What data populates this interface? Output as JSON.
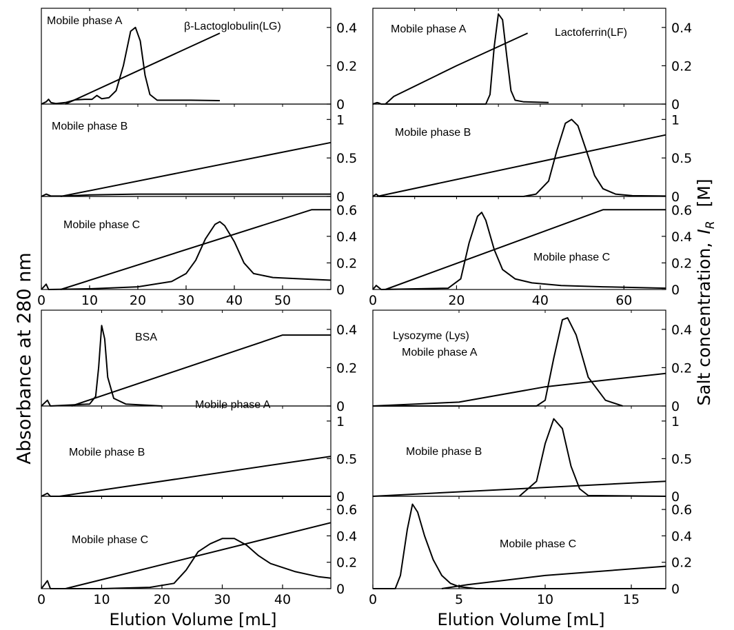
{
  "figure": {
    "ylabel_left": "Absorbance at 280 nm",
    "ylabel_right_main": "Salt concentration,",
    "ylabel_right_var": "I",
    "ylabel_right_sub": "R",
    "ylabel_right_unit": "[M]",
    "xlabel_left": "Elution Volume [mL]",
    "xlabel_right": "Elution Volume [mL]"
  },
  "chart_data": [
    {
      "type": "line",
      "panel": "top-left",
      "phase": "Mobile phase A",
      "annotations": [
        "Mobile phase A",
        "β-Lactoglobulin(LG)"
      ],
      "xlim": [
        0,
        60
      ],
      "ylim_right": [
        0,
        0.5
      ],
      "yticks_right": [
        "0",
        "0.2",
        "0.4"
      ],
      "series": [
        {
          "role": "salt",
          "points": [
            [
              5,
              0
            ],
            [
              37,
              0.37
            ]
          ]
        },
        {
          "role": "absorbance",
          "points": [
            [
              0,
              0
            ],
            [
              1,
              0.012
            ],
            [
              1.5,
              0.025
            ],
            [
              2,
              0.008
            ],
            [
              3,
              0.003
            ],
            [
              5,
              0.008
            ],
            [
              7,
              0.022
            ],
            [
              9,
              0.025
            ],
            [
              10.5,
              0.025
            ],
            [
              11.5,
              0.045
            ],
            [
              12.5,
              0.028
            ],
            [
              14,
              0.033
            ],
            [
              15.5,
              0.07
            ],
            [
              17,
              0.2
            ],
            [
              18.5,
              0.38
            ],
            [
              19.5,
              0.4
            ],
            [
              20.5,
              0.33
            ],
            [
              21.5,
              0.15
            ],
            [
              22.5,
              0.05
            ],
            [
              24,
              0.02
            ],
            [
              27,
              0.02
            ],
            [
              31,
              0.02
            ],
            [
              37,
              0.018
            ]
          ]
        }
      ]
    },
    {
      "type": "line",
      "panel": "top-right",
      "phase": "Mobile phase A",
      "annotations": [
        "Mobile phase A",
        "Lactoferrin(LF)"
      ],
      "xlim": [
        0,
        70
      ],
      "ylim_right": [
        0,
        0.5
      ],
      "yticks_right": [
        "0",
        "0.2",
        "0.4"
      ],
      "series": [
        {
          "role": "salt",
          "points": [
            [
              3,
              0
            ],
            [
              5,
              0.04
            ],
            [
              20,
              0.2
            ],
            [
              30,
              0.3
            ],
            [
              37,
              0.37
            ]
          ]
        },
        {
          "role": "absorbance",
          "points": [
            [
              0,
              0
            ],
            [
              1,
              0.008
            ],
            [
              1.5,
              0.005
            ],
            [
              2,
              0
            ],
            [
              27,
              0
            ],
            [
              28,
              0.05
            ],
            [
              29,
              0.3
            ],
            [
              30,
              0.47
            ],
            [
              31,
              0.44
            ],
            [
              32,
              0.25
            ],
            [
              33,
              0.07
            ],
            [
              34,
              0.02
            ],
            [
              36,
              0.012
            ],
            [
              42,
              0.008
            ]
          ]
        }
      ]
    },
    {
      "type": "line",
      "panel": "middle-left",
      "phase": "Mobile phase B",
      "annotations": [
        "Mobile phase B"
      ],
      "xlim": [
        0,
        60
      ],
      "ylim_right": [
        0,
        1.2
      ],
      "yticks_right": [
        "0",
        "0.5",
        "1"
      ],
      "series": [
        {
          "role": "salt",
          "points": [
            [
              4,
              0
            ],
            [
              60,
              0.7
            ]
          ]
        },
        {
          "role": "absorbance",
          "points": [
            [
              0,
              0
            ],
            [
              1,
              0.03
            ],
            [
              2,
              0.005
            ],
            [
              5,
              0.005
            ],
            [
              10,
              0.02
            ],
            [
              20,
              0.03
            ],
            [
              40,
              0.03
            ],
            [
              60,
              0.03
            ]
          ]
        }
      ]
    },
    {
      "type": "line",
      "panel": "middle-right",
      "phase": "Mobile phase B",
      "annotations": [
        "Mobile phase B"
      ],
      "xlim": [
        0,
        70
      ],
      "ylim_right": [
        0,
        1.2
      ],
      "yticks_right": [
        "0",
        "0.5",
        "1"
      ],
      "series": [
        {
          "role": "salt",
          "points": [
            [
              1,
              0
            ],
            [
              70,
              0.8
            ]
          ]
        },
        {
          "role": "absorbance",
          "points": [
            [
              0,
              0
            ],
            [
              0.8,
              0.03
            ],
            [
              1.5,
              0
            ],
            [
              36,
              0
            ],
            [
              39,
              0.03
            ],
            [
              42,
              0.2
            ],
            [
              44,
              0.6
            ],
            [
              46,
              0.95
            ],
            [
              47.5,
              1.0
            ],
            [
              49,
              0.92
            ],
            [
              51,
              0.6
            ],
            [
              53,
              0.27
            ],
            [
              55,
              0.1
            ],
            [
              58,
              0.03
            ],
            [
              62,
              0.01
            ],
            [
              70,
              0.005
            ]
          ]
        }
      ]
    },
    {
      "type": "line",
      "panel": "bottom-row1-left",
      "phase": "Mobile phase C",
      "annotations": [
        "Mobile phase C"
      ],
      "xlim": [
        0,
        60
      ],
      "ylim_right": [
        0,
        0.7
      ],
      "yticks_right": [
        "0",
        "0.2",
        "0.4",
        "0.6"
      ],
      "xticks": [
        "0",
        "10",
        "20",
        "30",
        "40",
        "50"
      ],
      "series": [
        {
          "role": "salt",
          "points": [
            [
              4,
              0
            ],
            [
              56,
              0.6
            ],
            [
              60,
              0.6
            ]
          ]
        },
        {
          "role": "absorbance",
          "points": [
            [
              0,
              0
            ],
            [
              1,
              0.04
            ],
            [
              1.5,
              0
            ],
            [
              10,
              0.005
            ],
            [
              20,
              0.02
            ],
            [
              27,
              0.06
            ],
            [
              30,
              0.12
            ],
            [
              32,
              0.22
            ],
            [
              34,
              0.38
            ],
            [
              36,
              0.49
            ],
            [
              37,
              0.51
            ],
            [
              38,
              0.48
            ],
            [
              40,
              0.36
            ],
            [
              42,
              0.2
            ],
            [
              44,
              0.12
            ],
            [
              48,
              0.09
            ],
            [
              54,
              0.08
            ],
            [
              60,
              0.07
            ]
          ]
        }
      ]
    },
    {
      "type": "line",
      "panel": "bottom-row1-right",
      "phase": "Mobile phase C",
      "annotations": [
        "Mobile phase C"
      ],
      "xlim": [
        0,
        70
      ],
      "ylim_right": [
        0,
        0.7
      ],
      "yticks_right": [
        "0",
        "0.2",
        "0.4",
        "0.6"
      ],
      "xticks": [
        "0",
        "20",
        "40",
        "60"
      ],
      "series": [
        {
          "role": "salt",
          "points": [
            [
              3,
              0
            ],
            [
              55,
              0.6
            ],
            [
              70,
              0.6
            ]
          ]
        },
        {
          "role": "absorbance",
          "points": [
            [
              0,
              0
            ],
            [
              0.8,
              0.03
            ],
            [
              2,
              0
            ],
            [
              18,
              0.01
            ],
            [
              21,
              0.08
            ],
            [
              23,
              0.35
            ],
            [
              25,
              0.55
            ],
            [
              26,
              0.58
            ],
            [
              27,
              0.52
            ],
            [
              29,
              0.3
            ],
            [
              31,
              0.15
            ],
            [
              34,
              0.08
            ],
            [
              38,
              0.05
            ],
            [
              45,
              0.03
            ],
            [
              55,
              0.02
            ],
            [
              70,
              0.01
            ]
          ]
        }
      ]
    },
    {
      "type": "line",
      "panel": "lower-top-left",
      "phase": "Mobile phase A",
      "annotations": [
        "BSA",
        "Mobile phase A"
      ],
      "xlim": [
        0,
        48
      ],
      "ylim_right": [
        0,
        0.5
      ],
      "yticks_right": [
        "0",
        "0.2",
        "0.4"
      ],
      "series": [
        {
          "role": "salt",
          "points": [
            [
              5,
              0
            ],
            [
              40,
              0.37
            ],
            [
              48,
              0.37
            ]
          ]
        },
        {
          "role": "absorbance",
          "points": [
            [
              0,
              0
            ],
            [
              1,
              0.03
            ],
            [
              1.5,
              0
            ],
            [
              8,
              0.01
            ],
            [
              9,
              0.05
            ],
            [
              9.5,
              0.2
            ],
            [
              10,
              0.42
            ],
            [
              10.5,
              0.35
            ],
            [
              11,
              0.15
            ],
            [
              12,
              0.04
            ],
            [
              14,
              0.01
            ],
            [
              20,
              0
            ]
          ]
        }
      ]
    },
    {
      "type": "line",
      "panel": "lower-top-right",
      "phase": "Mobile phase A",
      "annotations": [
        "Lysozyme (Lys)",
        "Mobile phase A"
      ],
      "xlim": [
        0,
        17
      ],
      "ylim_right": [
        0,
        0.5
      ],
      "yticks_right": [
        "0",
        "0.2",
        "0.4"
      ],
      "series": [
        {
          "role": "salt",
          "points": [
            [
              0,
              0
            ],
            [
              5,
              0.02
            ],
            [
              10,
              0.1
            ],
            [
              17,
              0.17
            ]
          ]
        },
        {
          "role": "absorbance",
          "points": [
            [
              0,
              0
            ],
            [
              9.5,
              0
            ],
            [
              10,
              0.03
            ],
            [
              10.5,
              0.25
            ],
            [
              11,
              0.45
            ],
            [
              11.3,
              0.46
            ],
            [
              11.8,
              0.37
            ],
            [
              12.5,
              0.15
            ],
            [
              13.5,
              0.03
            ],
            [
              14.5,
              0
            ]
          ]
        }
      ]
    },
    {
      "type": "line",
      "panel": "lower-middle-left",
      "phase": "Mobile phase B",
      "annotations": [
        "Mobile phase B"
      ],
      "xlim": [
        0,
        48
      ],
      "ylim_right": [
        0,
        1.2
      ],
      "yticks_right": [
        "0",
        "0.5",
        "1"
      ],
      "series": [
        {
          "role": "salt",
          "points": [
            [
              3,
              0
            ],
            [
              48,
              0.53
            ]
          ]
        },
        {
          "role": "absorbance",
          "points": [
            [
              0,
              0
            ],
            [
              1,
              0.04
            ],
            [
              1.5,
              0
            ],
            [
              48,
              0
            ]
          ]
        }
      ]
    },
    {
      "type": "line",
      "panel": "lower-middle-right",
      "phase": "Mobile phase B",
      "annotations": [
        "Mobile phase B"
      ],
      "xlim": [
        0,
        17
      ],
      "ylim_right": [
        0,
        1.2
      ],
      "yticks_right": [
        "0",
        "0.5",
        "1"
      ],
      "series": [
        {
          "role": "salt",
          "points": [
            [
              0,
              0
            ],
            [
              17,
              0.2
            ]
          ]
        },
        {
          "role": "absorbance",
          "points": [
            [
              8.5,
              0
            ],
            [
              9.5,
              0.2
            ],
            [
              10,
              0.7
            ],
            [
              10.5,
              1.03
            ],
            [
              11,
              0.9
            ],
            [
              11.5,
              0.4
            ],
            [
              12,
              0.1
            ],
            [
              12.5,
              0.01
            ],
            [
              17,
              0
            ]
          ]
        }
      ]
    },
    {
      "type": "line",
      "panel": "lower-bottom-left",
      "phase": "Mobile phase C",
      "annotations": [
        "Mobile phase C"
      ],
      "xlim": [
        0,
        48
      ],
      "ylim_right": [
        0,
        0.7
      ],
      "yticks_right": [
        "0",
        "0.2",
        "0.4",
        "0.6"
      ],
      "xticks": [
        "0",
        "10",
        "20",
        "30",
        "40"
      ],
      "series": [
        {
          "role": "salt",
          "points": [
            [
              4,
              0
            ],
            [
              48,
              0.5
            ]
          ]
        },
        {
          "role": "absorbance",
          "points": [
            [
              0,
              0
            ],
            [
              1,
              0.06
            ],
            [
              1.5,
              0
            ],
            [
              10,
              0
            ],
            [
              18,
              0.01
            ],
            [
              22,
              0.04
            ],
            [
              24,
              0.14
            ],
            [
              26,
              0.28
            ],
            [
              28,
              0.34
            ],
            [
              30,
              0.38
            ],
            [
              32,
              0.38
            ],
            [
              34,
              0.33
            ],
            [
              36,
              0.25
            ],
            [
              38,
              0.19
            ],
            [
              42,
              0.13
            ],
            [
              46,
              0.09
            ],
            [
              48,
              0.08
            ]
          ]
        }
      ]
    },
    {
      "type": "line",
      "panel": "lower-bottom-right",
      "phase": "Mobile phase C",
      "annotations": [
        "Mobile phase C"
      ],
      "xlim": [
        0,
        17
      ],
      "ylim_right": [
        0,
        0.7
      ],
      "yticks_right": [
        "0",
        "0.2",
        "0.4",
        "0.6"
      ],
      "xticks": [
        "0",
        "5",
        "10",
        "15"
      ],
      "series": [
        {
          "role": "salt",
          "points": [
            [
              4,
              0
            ],
            [
              5.5,
              0.03
            ],
            [
              10,
              0.1
            ],
            [
              17,
              0.17
            ]
          ]
        },
        {
          "role": "absorbance",
          "points": [
            [
              0,
              0
            ],
            [
              1.3,
              0
            ],
            [
              1.6,
              0.1
            ],
            [
              2,
              0.45
            ],
            [
              2.3,
              0.64
            ],
            [
              2.6,
              0.58
            ],
            [
              3,
              0.4
            ],
            [
              3.5,
              0.22
            ],
            [
              4,
              0.1
            ],
            [
              4.5,
              0.04
            ],
            [
              5,
              0.015
            ],
            [
              6,
              0
            ],
            [
              17,
              0
            ]
          ]
        }
      ]
    }
  ]
}
